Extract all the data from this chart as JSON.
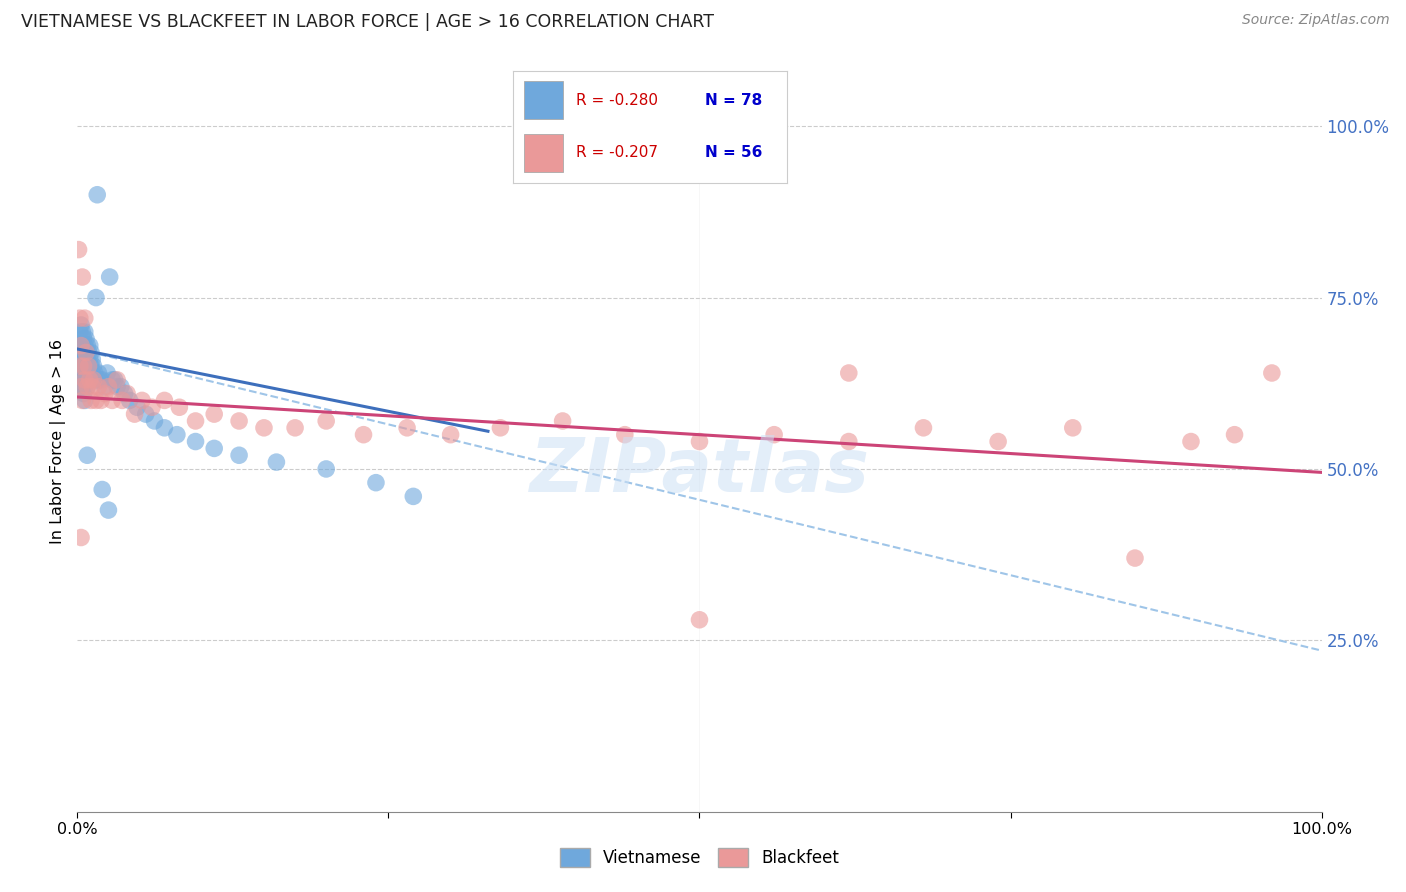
{
  "title": "VIETNAMESE VS BLACKFEET IN LABOR FORCE | AGE > 16 CORRELATION CHART",
  "source": "Source: ZipAtlas.com",
  "ylabel": "In Labor Force | Age > 16",
  "xlim": [
    0.0,
    1.0
  ],
  "ylim": [
    0.0,
    1.08
  ],
  "yticks": [
    0.25,
    0.5,
    0.75,
    1.0
  ],
  "ytick_labels": [
    "25.0%",
    "50.0%",
    "75.0%",
    "100.0%"
  ],
  "blue_color": "#6fa8dc",
  "pink_color": "#ea9999",
  "blue_line_color": "#3d6fbc",
  "pink_line_color": "#cc4477",
  "dashed_line_color": "#9fc5e8",
  "watermark": "ZIPatlas",
  "blue_line_x0": 0.0,
  "blue_line_y0": 0.675,
  "blue_line_x1": 0.33,
  "blue_line_y1": 0.555,
  "dash_line_x0": 0.0,
  "dash_line_y0": 0.675,
  "dash_line_x1": 1.0,
  "dash_line_y1": 0.235,
  "pink_line_x0": 0.0,
  "pink_line_y0": 0.605,
  "pink_line_x1": 1.0,
  "pink_line_y1": 0.495,
  "vietnamese_x": [
    0.001,
    0.001,
    0.002,
    0.002,
    0.002,
    0.002,
    0.003,
    0.003,
    0.003,
    0.003,
    0.003,
    0.004,
    0.004,
    0.004,
    0.004,
    0.004,
    0.005,
    0.005,
    0.005,
    0.005,
    0.005,
    0.006,
    0.006,
    0.006,
    0.006,
    0.006,
    0.006,
    0.007,
    0.007,
    0.007,
    0.007,
    0.008,
    0.008,
    0.008,
    0.008,
    0.009,
    0.009,
    0.009,
    0.01,
    0.01,
    0.01,
    0.011,
    0.011,
    0.012,
    0.012,
    0.013,
    0.014,
    0.015,
    0.016,
    0.017,
    0.018,
    0.02,
    0.022,
    0.024,
    0.026,
    0.028,
    0.03,
    0.032,
    0.035,
    0.038,
    0.042,
    0.048,
    0.055,
    0.062,
    0.07,
    0.08,
    0.095,
    0.11,
    0.13,
    0.16,
    0.2,
    0.24,
    0.27,
    0.02,
    0.025,
    0.016,
    0.008
  ],
  "vietnamese_y": [
    0.68,
    0.65,
    0.7,
    0.67,
    0.65,
    0.63,
    0.71,
    0.68,
    0.66,
    0.64,
    0.62,
    0.7,
    0.68,
    0.66,
    0.64,
    0.62,
    0.69,
    0.67,
    0.65,
    0.63,
    0.61,
    0.7,
    0.68,
    0.66,
    0.64,
    0.62,
    0.6,
    0.69,
    0.67,
    0.65,
    0.63,
    0.68,
    0.66,
    0.64,
    0.62,
    0.67,
    0.65,
    0.63,
    0.68,
    0.66,
    0.64,
    0.67,
    0.65,
    0.66,
    0.64,
    0.65,
    0.64,
    0.75,
    0.63,
    0.64,
    0.63,
    0.63,
    0.62,
    0.64,
    0.78,
    0.63,
    0.63,
    0.62,
    0.62,
    0.61,
    0.6,
    0.59,
    0.58,
    0.57,
    0.56,
    0.55,
    0.54,
    0.53,
    0.52,
    0.51,
    0.5,
    0.48,
    0.46,
    0.47,
    0.44,
    0.9,
    0.52
  ],
  "blackfeet_x": [
    0.001,
    0.002,
    0.002,
    0.003,
    0.003,
    0.004,
    0.004,
    0.005,
    0.006,
    0.006,
    0.007,
    0.008,
    0.009,
    0.01,
    0.011,
    0.012,
    0.013,
    0.015,
    0.017,
    0.019,
    0.022,
    0.025,
    0.028,
    0.032,
    0.036,
    0.04,
    0.046,
    0.052,
    0.06,
    0.07,
    0.082,
    0.095,
    0.11,
    0.13,
    0.15,
    0.175,
    0.2,
    0.23,
    0.265,
    0.3,
    0.34,
    0.39,
    0.44,
    0.5,
    0.56,
    0.62,
    0.68,
    0.74,
    0.8,
    0.85,
    0.895,
    0.93,
    0.96,
    0.5,
    0.003,
    0.62
  ],
  "blackfeet_y": [
    0.82,
    0.72,
    0.65,
    0.68,
    0.62,
    0.78,
    0.6,
    0.65,
    0.72,
    0.63,
    0.67,
    0.62,
    0.65,
    0.63,
    0.6,
    0.62,
    0.63,
    0.6,
    0.62,
    0.6,
    0.61,
    0.62,
    0.6,
    0.63,
    0.6,
    0.61,
    0.58,
    0.6,
    0.59,
    0.6,
    0.59,
    0.57,
    0.58,
    0.57,
    0.56,
    0.56,
    0.57,
    0.55,
    0.56,
    0.55,
    0.56,
    0.57,
    0.55,
    0.54,
    0.55,
    0.54,
    0.56,
    0.54,
    0.56,
    0.37,
    0.54,
    0.55,
    0.64,
    0.28,
    0.4,
    0.64
  ]
}
